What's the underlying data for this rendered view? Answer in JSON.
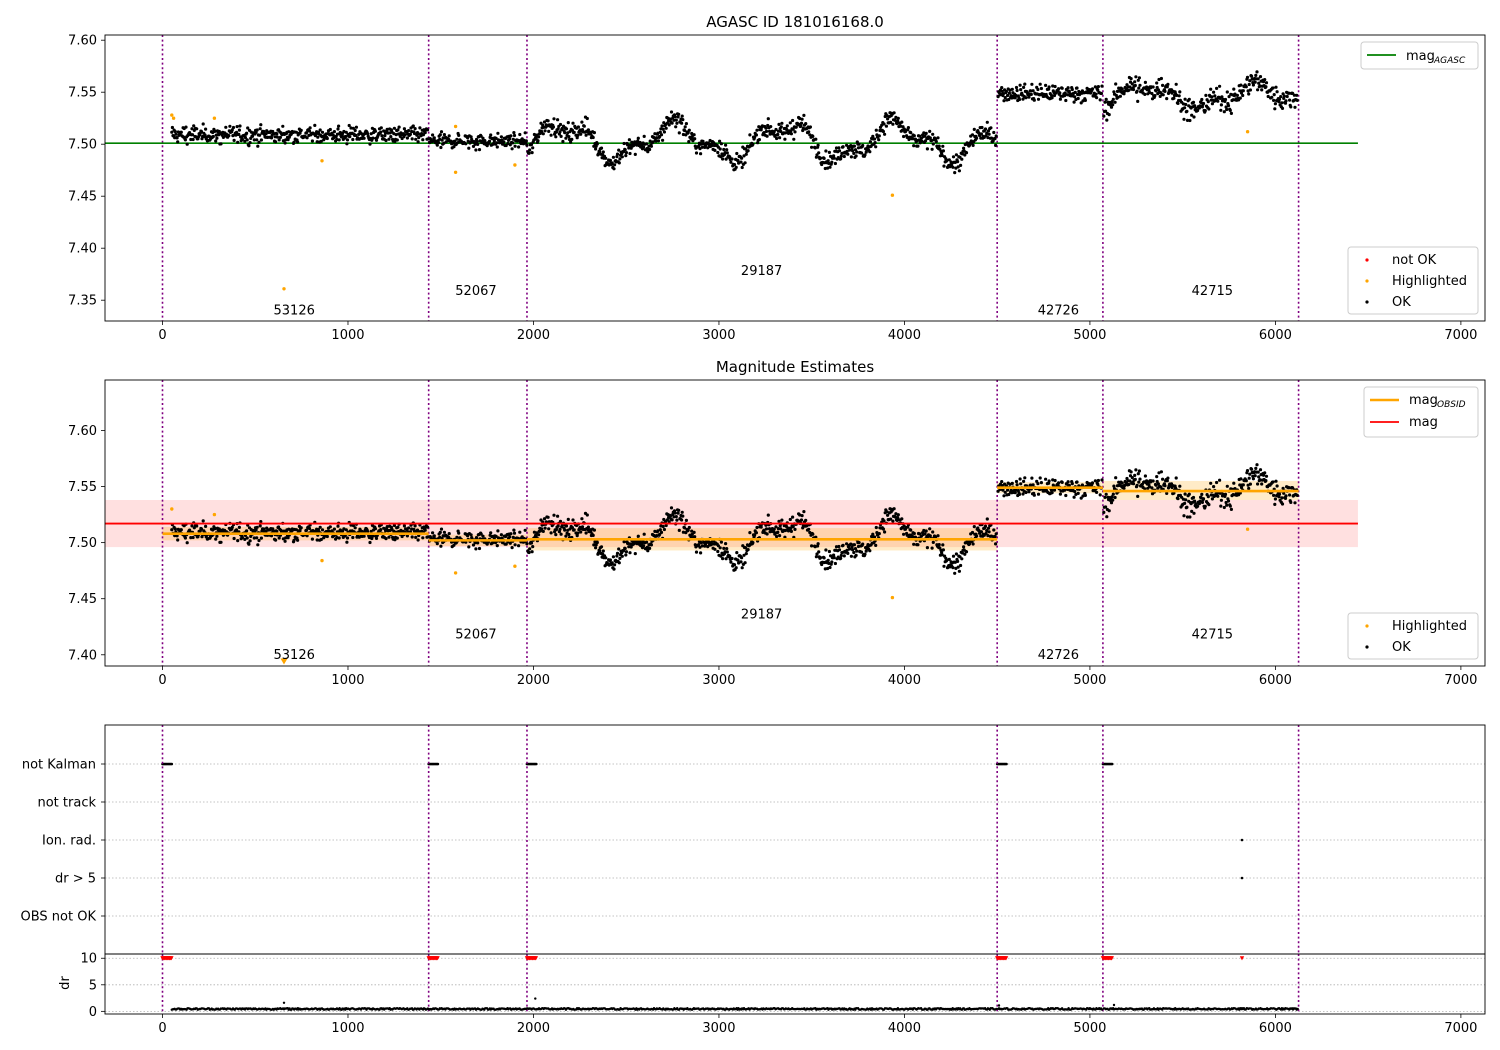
{
  "chart_data": [
    {
      "type": "scatter",
      "title": "AGASC ID 181016168.0",
      "xlim": [
        -310,
        7130
      ],
      "ylim": [
        7.33,
        7.605
      ],
      "xticks": [
        0,
        1000,
        2000,
        3000,
        4000,
        5000,
        6000,
        7000
      ],
      "yticks": [
        7.35,
        7.4,
        7.45,
        7.5,
        7.55,
        7.6
      ],
      "ytick_labels": [
        "7.35",
        "7.40",
        "7.45",
        "7.50",
        "7.55",
        "7.60"
      ],
      "obs_boundaries": [
        0,
        1435,
        1965,
        4500,
        5070,
        6125
      ],
      "obsid_labels": [
        {
          "text": "53126",
          "x": 710,
          "y": 7.34
        },
        {
          "text": "52067",
          "x": 1690,
          "y": 7.359
        },
        {
          "text": "29187",
          "x": 3230,
          "y": 7.378
        },
        {
          "text": "42726",
          "x": 4830,
          "y": 7.34
        },
        {
          "text": "42715",
          "x": 5660,
          "y": 7.359
        }
      ],
      "reference_line": {
        "name": "mag_AGASC",
        "value": 7.501,
        "x": [
          -310,
          6445
        ],
        "color": "#008000"
      },
      "ok_levels": [
        {
          "x": [
            50,
            1435
          ],
          "mean": 7.509,
          "sd": 0.0055,
          "bumps": 0
        },
        {
          "x": [
            1440,
            1965
          ],
          "mean": 7.503,
          "sd": 0.005,
          "bumps": 0
        },
        {
          "x": [
            1970,
            4495
          ],
          "mean": 7.503,
          "sd": 0.006,
          "bumps": 0.015
        },
        {
          "x": [
            4505,
            5068
          ],
          "mean": 7.549,
          "sd": 0.0055,
          "bumps": 0
        },
        {
          "x": [
            5075,
            6120
          ],
          "mean": 7.546,
          "sd": 0.007,
          "bumps": 0.01
        }
      ],
      "highlighted_points": [
        [
          50,
          7.528
        ],
        [
          60,
          7.525
        ],
        [
          280,
          7.525
        ],
        [
          655,
          7.361
        ],
        [
          860,
          7.484
        ],
        [
          1580,
          7.517
        ],
        [
          1580,
          7.473
        ],
        [
          1900,
          7.48
        ],
        [
          3935,
          7.451
        ],
        [
          5850,
          7.512
        ]
      ],
      "legend": [
        "not OK",
        "Highlighted",
        "OK"
      ],
      "legend_top": [
        "mag",
        "AGASC"
      ]
    },
    {
      "type": "scatter",
      "title": "Magnitude Estimates",
      "xlim": [
        -310,
        7130
      ],
      "ylim": [
        7.39,
        7.645
      ],
      "xticks": [
        0,
        1000,
        2000,
        3000,
        4000,
        5000,
        6000,
        7000
      ],
      "yticks": [
        7.4,
        7.45,
        7.5,
        7.55,
        7.6
      ],
      "ytick_labels": [
        "7.40",
        "7.45",
        "7.50",
        "7.55",
        "7.60"
      ],
      "obsid_labels": [
        {
          "text": "53126",
          "x": 710,
          "y": 7.4
        },
        {
          "text": "52067",
          "x": 1690,
          "y": 7.418
        },
        {
          "text": "29187",
          "x": 3230,
          "y": 7.436
        },
        {
          "text": "42726",
          "x": 4830,
          "y": 7.4
        },
        {
          "text": "42715",
          "x": 5660,
          "y": 7.418
        }
      ],
      "mag": {
        "value": 7.517,
        "band": [
          7.496,
          7.538
        ],
        "x": [
          -310,
          6445
        ],
        "color": "#ff0000"
      },
      "mag_obsid": [
        {
          "x": [
            0,
            1435
          ],
          "value": 7.508,
          "band": [
            7.502,
            7.514
          ]
        },
        {
          "x": [
            1435,
            1965
          ],
          "value": 7.502,
          "band": [
            7.497,
            7.507
          ]
        },
        {
          "x": [
            1965,
            4500
          ],
          "value": 7.503,
          "band": [
            7.493,
            7.513
          ]
        },
        {
          "x": [
            4500,
            5070
          ],
          "value": 7.549,
          "band": [
            7.544,
            7.554
          ]
        },
        {
          "x": [
            5070,
            6125
          ],
          "value": 7.546,
          "band": [
            7.538,
            7.555
          ]
        }
      ],
      "highlighted_points": [
        [
          50,
          7.53
        ],
        [
          280,
          7.525
        ],
        [
          860,
          7.484
        ],
        [
          1580,
          7.473
        ],
        [
          1900,
          7.479
        ],
        [
          3935,
          7.451
        ],
        [
          5850,
          7.512
        ]
      ],
      "down_marker": [
        655,
        7.394
      ],
      "legend": [
        "Highlighted",
        "OK"
      ],
      "legend_top": [
        "mag",
        "OBSID",
        "mag"
      ]
    },
    {
      "type": "scatter",
      "title": "",
      "xlim": [
        -310,
        7130
      ],
      "xticks": [
        0,
        1000,
        2000,
        3000,
        4000,
        5000,
        6000,
        7000
      ],
      "flag_categories": [
        "not Kalman",
        "not track",
        "Ion. rad.",
        "dr > 5",
        "OBS not OK"
      ],
      "flag_points": [
        {
          "flag": "not Kalman",
          "x": [
            0,
            50
          ]
        },
        {
          "flag": "not Kalman",
          "x": [
            1435,
            1485
          ]
        },
        {
          "flag": "not Kalman",
          "x": [
            1965,
            2015
          ]
        },
        {
          "flag": "not Kalman",
          "x": [
            4500,
            4550
          ]
        },
        {
          "flag": "not Kalman",
          "x": [
            5070,
            5120
          ]
        },
        {
          "flag": "Ion. rad.",
          "x": [
            5820,
            5820
          ]
        },
        {
          "flag": "dr > 5",
          "x": [
            5820,
            5820
          ]
        }
      ],
      "dr": {
        "ylabel": "dr",
        "ylim": [
          -0.5,
          10.8
        ],
        "yticks": [
          0,
          5,
          10
        ],
        "clip_value": 10,
        "clipped_x": [
          [
            0,
            50
          ],
          [
            1435,
            1485
          ],
          [
            1965,
            2015
          ],
          [
            4500,
            4550
          ],
          [
            5070,
            5120
          ],
          [
            5820,
            5820
          ]
        ],
        "typical": [
          0.3,
          0.6
        ],
        "spikes": [
          [
            655,
            1.6
          ],
          [
            2010,
            2.4
          ],
          [
            4510,
            1.1
          ],
          [
            5130,
            1.2
          ]
        ]
      }
    }
  ]
}
